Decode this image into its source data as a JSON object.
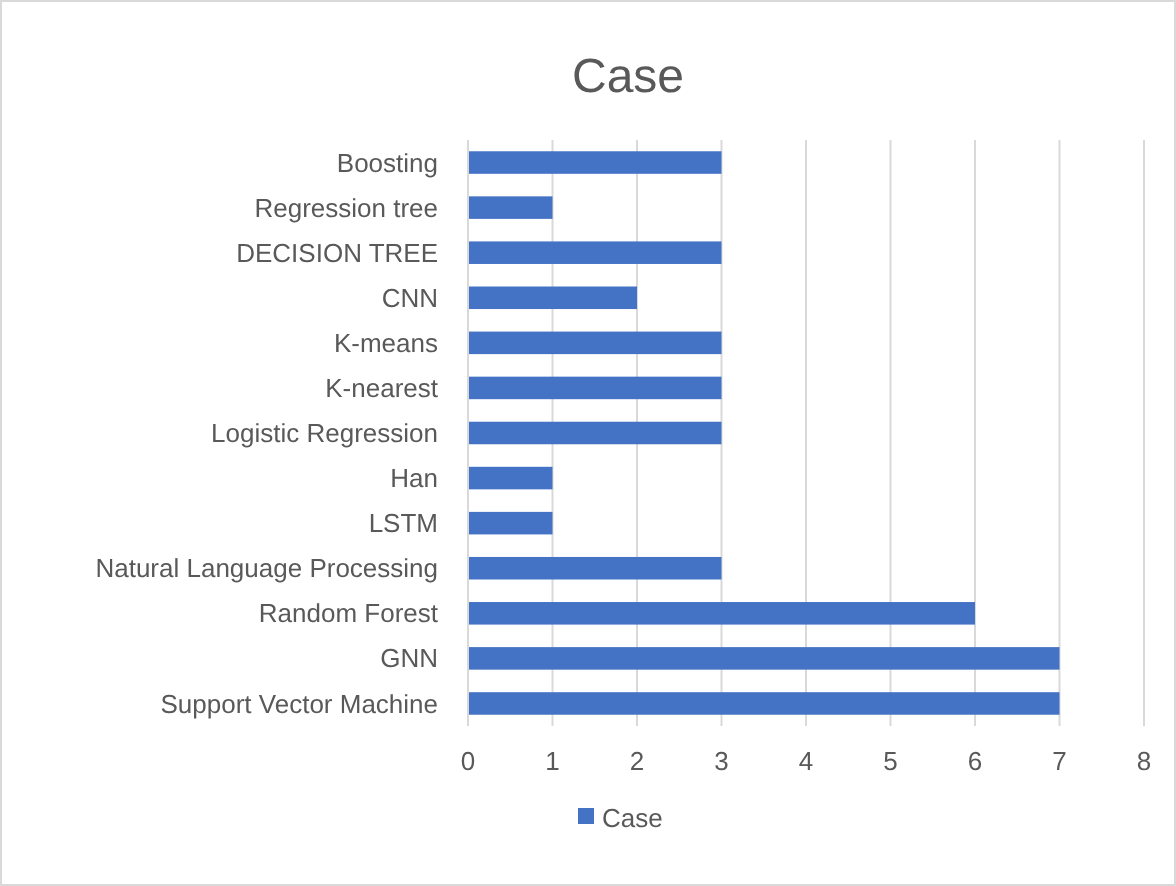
{
  "chart_data": {
    "type": "bar",
    "orientation": "horizontal",
    "title": "Case",
    "categories": [
      "Boosting",
      "Regression tree",
      "DECISION TREE",
      "CNN",
      "K-means",
      "K-nearest",
      "Logistic Regression",
      "Han",
      "LSTM",
      "Natural Language Processing",
      "Random Forest",
      "GNN",
      "Support Vector Machine"
    ],
    "series": [
      {
        "name": "Case",
        "color": "#4472c4",
        "values": [
          3,
          1,
          3,
          2,
          3,
          3,
          3,
          1,
          1,
          3,
          6,
          7,
          7
        ]
      }
    ],
    "xlim": [
      0,
      8
    ],
    "xticks": [
      0,
      1,
      2,
      3,
      4,
      5,
      6,
      7,
      8
    ],
    "grid": "x",
    "legend": "bottom"
  }
}
